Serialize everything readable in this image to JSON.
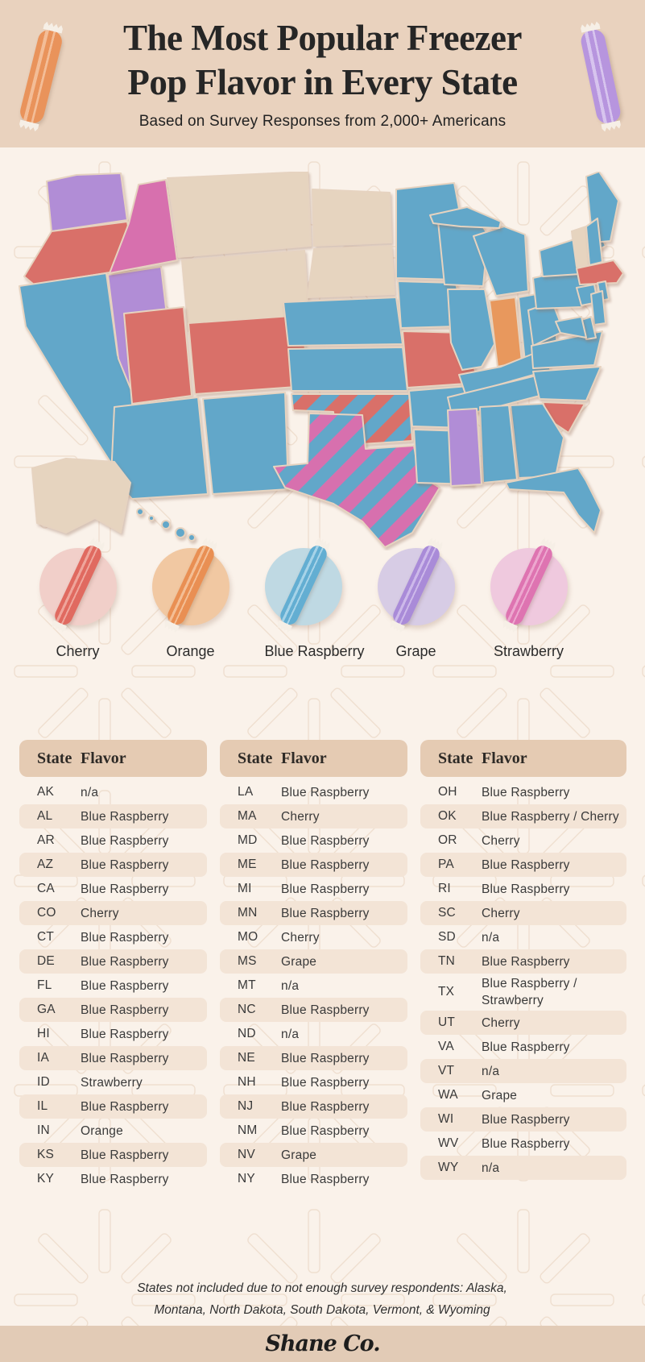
{
  "header": {
    "title_line1": "The Most Popular Freezer",
    "title_line2": "Pop Flavor in Every State",
    "subtitle": "Based on Survey Responses from 2,000+ Americans",
    "pops": [
      {
        "name": "orange-freezer-pop",
        "color": "#E9935B",
        "hi": "#F3BD97"
      },
      {
        "name": "grape-freezer-pop",
        "color": "#B795DE",
        "hi": "#D7C4EE"
      }
    ]
  },
  "colors": {
    "flavors": {
      "cherry": "#D97069",
      "orange": "#E8985D",
      "blueRaspberry": "#62A7C9",
      "grape": "#B18DD6",
      "strawberry": "#D770AE",
      "na": "#E6D4BF"
    }
  },
  "legend": {
    "items": [
      {
        "label": "Cherry",
        "key": "cherry",
        "circle": "#F1CFC9",
        "pop": "#E06A60",
        "pop_hi": "#EFA59B"
      },
      {
        "label": "Orange",
        "key": "orange",
        "circle": "#F1C8A2",
        "pop": "#E98F53",
        "pop_hi": "#F4BE94"
      },
      {
        "label": "Blue Raspberry",
        "key": "blueRaspberry",
        "circle": "#BFD9E3",
        "pop": "#63AED2",
        "pop_hi": "#A6D3E8"
      },
      {
        "label": "Grape",
        "key": "grape",
        "circle": "#D7CCE5",
        "pop": "#A98BD8",
        "pop_hi": "#CDB9EA"
      },
      {
        "label": "Strawberry",
        "key": "strawberry",
        "circle": "#EFC9DE",
        "pop": "#DE74B1",
        "pop_hi": "#EDA7CF"
      }
    ]
  },
  "map": {
    "states": {
      "WA": "grape",
      "OR": "cherry",
      "CA": "blueRaspberry",
      "NV": "grape",
      "ID": "strawberry",
      "MT": "na",
      "WY": "na",
      "UT": "cherry",
      "CO": "cherry",
      "AZ": "blueRaspberry",
      "NM": "blueRaspberry",
      "ND": "na",
      "SD": "na",
      "NE": "blueRaspberry",
      "KS": "blueRaspberry",
      "OK": "blueRaspberry/cherry",
      "TX": "blueRaspberry/strawberry",
      "MN": "blueRaspberry",
      "IA": "blueRaspberry",
      "MO": "cherry",
      "AR": "blueRaspberry",
      "LA": "blueRaspberry",
      "WI": "blueRaspberry",
      "IL": "blueRaspberry",
      "MS": "grape",
      "AL": "blueRaspberry",
      "GA": "blueRaspberry",
      "FL": "blueRaspberry",
      "TN": "blueRaspberry",
      "KY": "blueRaspberry",
      "IN": "orange",
      "OH": "blueRaspberry",
      "MI": "blueRaspberry",
      "SC": "cherry",
      "NC": "blueRaspberry",
      "VA": "blueRaspberry",
      "WV": "blueRaspberry",
      "PA": "blueRaspberry",
      "NY": "blueRaspberry",
      "ME": "blueRaspberry",
      "VT": "na",
      "NH": "blueRaspberry",
      "MA": "cherry",
      "CT": "blueRaspberry",
      "RI": "blueRaspberry",
      "NJ": "blueRaspberry",
      "DE": "blueRaspberry",
      "MD": "blueRaspberry",
      "AK": "na",
      "HI": "blueRaspberry"
    }
  },
  "tables": {
    "header": {
      "state": "State",
      "flavor": "Flavor"
    },
    "columns": [
      [
        {
          "state": "AK",
          "flavor": "n/a"
        },
        {
          "state": "AL",
          "flavor": "Blue Raspberry"
        },
        {
          "state": "AR",
          "flavor": "Blue Raspberry"
        },
        {
          "state": "AZ",
          "flavor": "Blue Raspberry"
        },
        {
          "state": "CA",
          "flavor": "Blue Raspberry"
        },
        {
          "state": "CO",
          "flavor": "Cherry"
        },
        {
          "state": "CT",
          "flavor": "Blue Raspberry"
        },
        {
          "state": "DE",
          "flavor": "Blue Raspberry"
        },
        {
          "state": "FL",
          "flavor": "Blue Raspberry"
        },
        {
          "state": "GA",
          "flavor": "Blue Raspberry"
        },
        {
          "state": "HI",
          "flavor": "Blue Raspberry"
        },
        {
          "state": "IA",
          "flavor": "Blue Raspberry"
        },
        {
          "state": "ID",
          "flavor": "Strawberry"
        },
        {
          "state": "IL",
          "flavor": "Blue Raspberry"
        },
        {
          "state": "IN",
          "flavor": "Orange"
        },
        {
          "state": "KS",
          "flavor": "Blue Raspberry"
        },
        {
          "state": "KY",
          "flavor": "Blue Raspberry"
        }
      ],
      [
        {
          "state": "LA",
          "flavor": "Blue Raspberry"
        },
        {
          "state": "MA",
          "flavor": "Cherry"
        },
        {
          "state": "MD",
          "flavor": "Blue Raspberry"
        },
        {
          "state": "ME",
          "flavor": "Blue Raspberry"
        },
        {
          "state": "MI",
          "flavor": "Blue Raspberry"
        },
        {
          "state": "MN",
          "flavor": "Blue Raspberry"
        },
        {
          "state": "MO",
          "flavor": "Cherry"
        },
        {
          "state": "MS",
          "flavor": "Grape"
        },
        {
          "state": "MT",
          "flavor": "n/a"
        },
        {
          "state": "NC",
          "flavor": "Blue Raspberry"
        },
        {
          "state": "ND",
          "flavor": "n/a"
        },
        {
          "state": "NE",
          "flavor": "Blue Raspberry"
        },
        {
          "state": "NH",
          "flavor": "Blue Raspberry"
        },
        {
          "state": "NJ",
          "flavor": "Blue Raspberry"
        },
        {
          "state": "NM",
          "flavor": "Blue Raspberry"
        },
        {
          "state": "NV",
          "flavor": "Grape"
        },
        {
          "state": "NY",
          "flavor": "Blue Raspberry"
        }
      ],
      [
        {
          "state": "OH",
          "flavor": "Blue Raspberry"
        },
        {
          "state": "OK",
          "flavor": "Blue Raspberry  / Cherry"
        },
        {
          "state": "OR",
          "flavor": "Cherry"
        },
        {
          "state": "PA",
          "flavor": "Blue Raspberry"
        },
        {
          "state": "RI",
          "flavor": "Blue Raspberry"
        },
        {
          "state": "SC",
          "flavor": "Cherry"
        },
        {
          "state": "SD",
          "flavor": "n/a"
        },
        {
          "state": "TN",
          "flavor": "Blue Raspberry"
        },
        {
          "state": "TX",
          "flavor": "Blue Raspberry  / Strawberry"
        },
        {
          "state": "UT",
          "flavor": "Cherry"
        },
        {
          "state": "VA",
          "flavor": "Blue Raspberry"
        },
        {
          "state": "VT",
          "flavor": "n/a"
        },
        {
          "state": "WA",
          "flavor": "Grape"
        },
        {
          "state": "WI",
          "flavor": "Blue Raspberry"
        },
        {
          "state": "WV",
          "flavor": "Blue Raspberry"
        },
        {
          "state": "WY",
          "flavor": "n/a"
        }
      ]
    ]
  },
  "footnote": {
    "line1": "States not included due to not enough survey respondents: Alaska,",
    "line2": "Montana, North Dakota, South Dakota, Vermont, & Wyoming"
  },
  "footer": {
    "logo": "Shane Co."
  }
}
